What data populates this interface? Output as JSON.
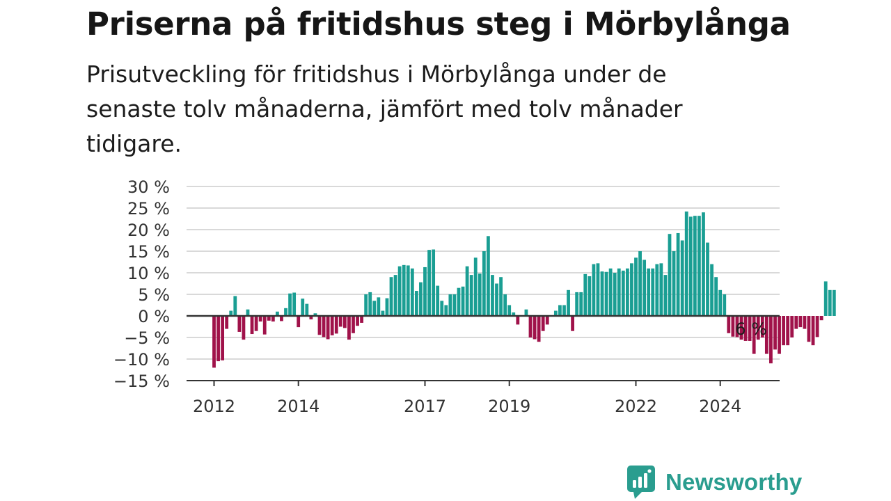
{
  "title": "Priserna på fritidshus steg i Mörbylånga",
  "subtitle": "Prisutveckling för fritidshus i Mörbylånga under de senaste tolv månaderna, jämfört med tolv månader tidigare.",
  "brand": {
    "name": "Newsworthy",
    "color": "#2a9d8f",
    "icon": "newsworthy-logo-icon"
  },
  "colors": {
    "positive": "#1a9e93",
    "negative": "#a0124a",
    "grid": "#d9d9d9",
    "axis": "#333333"
  },
  "chart_data": {
    "type": "bar",
    "title": "Priserna på fritidshus steg i Mörbylånga",
    "xlabel": "",
    "ylabel": "",
    "ylim": [
      -15,
      30
    ],
    "yticks": [
      -15,
      -10,
      -5,
      0,
      5,
      10,
      15,
      20,
      25,
      30
    ],
    "ytick_labels": [
      "−15 %",
      "−10 %",
      "−5 %",
      "0 %",
      "5 %",
      "10 %",
      "15 %",
      "20 %",
      "25 %",
      "30 %"
    ],
    "xticks": [
      {
        "label": "2012",
        "month": 0
      },
      {
        "label": "2014",
        "month": 20
      },
      {
        "label": "2017",
        "month": 50
      },
      {
        "label": "2019",
        "month": 70
      },
      {
        "label": "2022",
        "month": 100
      },
      {
        "label": "2024",
        "month": 120
      }
    ],
    "grid": true,
    "legend": "none",
    "annotation": {
      "label": "6 %",
      "month": 127
    },
    "values": [
      -12,
      -10.5,
      -10.3,
      -3,
      1.2,
      4.6,
      -3.7,
      -5.5,
      1.5,
      -4.2,
      -3.5,
      -1.3,
      -4.3,
      -1.1,
      -1.3,
      1,
      -1.2,
      1.8,
      5.2,
      5.4,
      -2.6,
      4,
      2.8,
      -0.8,
      0.6,
      -4.4,
      -4.9,
      -5.4,
      -4.5,
      -4.1,
      -2.5,
      -2.8,
      -5.5,
      -4,
      -2.3,
      -1.6,
      5,
      5.5,
      3.5,
      4.3,
      1.2,
      4.1,
      9,
      9.5,
      11.5,
      11.8,
      11.7,
      11,
      5.8,
      7.8,
      11.3,
      15.3,
      15.4,
      7,
      3.5,
      2.5,
      5,
      5,
      6.5,
      6.8,
      11.5,
      9.5,
      13.5,
      9.8,
      15,
      18.5,
      9.5,
      7.5,
      9,
      5,
      2.5,
      0.8,
      -2,
      0,
      1.5,
      -5,
      -5.4,
      -6,
      -3.5,
      -2,
      0,
      1.2,
      2.5,
      2.5,
      6,
      -3.5,
      5.5,
      5.5,
      9.7,
      9.2,
      12,
      12.2,
      10.3,
      10.2,
      11,
      10,
      11,
      10.5,
      11,
      12.2,
      13.5,
      15,
      13,
      11,
      11,
      12,
      12.2,
      9.5,
      19,
      15,
      19.2,
      17.5,
      24.2,
      23,
      23.2,
      23.2,
      24,
      17,
      12,
      9,
      6,
      5,
      -4,
      -4.8,
      -4.9,
      -5.5,
      -5.8,
      -5.8,
      -8.8,
      -5.5,
      -5,
      -8.8,
      -11,
      -7.8,
      -8.8,
      -6.8,
      -6.8,
      -5,
      -3,
      -2.6,
      -3,
      -6,
      -6.8,
      -4.9,
      -1,
      8,
      6,
      6
    ]
  }
}
